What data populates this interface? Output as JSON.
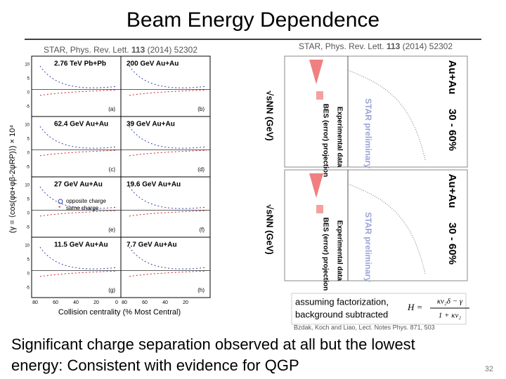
{
  "header": {
    "title": "Beam Energy Dependence"
  },
  "left_figure": {
    "citation": {
      "prefix": "STAR, Phys. Rev. Lett. ",
      "volume": "113",
      "suffix": " (2014) 52302"
    },
    "panels": [
      {
        "label": "2.76 TeV Pb+Pb",
        "tag": "(a)"
      },
      {
        "label": "200 GeV Au+Au",
        "tag": "(b)"
      },
      {
        "label": "62.4 GeV Au+Au",
        "tag": "(c)"
      },
      {
        "label": "39 GeV Au+Au",
        "tag": "(d)"
      },
      {
        "label": "27 GeV Au+Au",
        "tag": "(e)"
      },
      {
        "label": "19.6 GeV Au+Au",
        "tag": "(f)"
      },
      {
        "label": "11.5 GeV Au+Au",
        "tag": "(g)"
      },
      {
        "label": "7.7 GeV Au+Au",
        "tag": "(h)"
      }
    ],
    "legend": [
      "opposite charge",
      "same charge"
    ],
    "x_label": "Collision centrality (% Most Central)",
    "y_label": "(γ = ⟨cos(φα+φβ-2ψRP)⟩) × 10⁴",
    "x_ticks": [
      "80",
      "60",
      "40",
      "20",
      "0",
      "80",
      "60",
      "40",
      "20"
    ],
    "y_ticks": [
      "10",
      "5",
      "0",
      "-5"
    ]
  },
  "right_figure": {
    "citation": {
      "prefix": "STAR, Phys. Rev. Lett. ",
      "volume": "113",
      "suffix": " (2014) 52302"
    },
    "panels": [
      {
        "system": "Au+Au",
        "centrality": "30 - 60%",
        "projection": "BES (error) projection",
        "data": "Experimental data",
        "preliminary": "STAR preliminary",
        "axis": "√sNN (GeV)"
      },
      {
        "system": "Au+Au",
        "centrality": "30 - 60%",
        "projection": "BES (error) projection",
        "data": "Experimental data",
        "preliminary": "STAR preliminary",
        "axis": "√sNN (GeV)"
      }
    ],
    "note": {
      "line1": "assuming factorization,",
      "line2": "background subtracted",
      "formula_lhs": "H =",
      "formula_num": "κν₂δ − γ",
      "formula_den": "1 + κν₂"
    },
    "reference": "Bzdak, Koch and Liao, Lect. Notes Phys. 871, 503"
  },
  "footer": {
    "line1": "Significant charge separation observed at all but the lowest",
    "line2": "energy: Consistent with evidence for QGP",
    "page": "32"
  }
}
